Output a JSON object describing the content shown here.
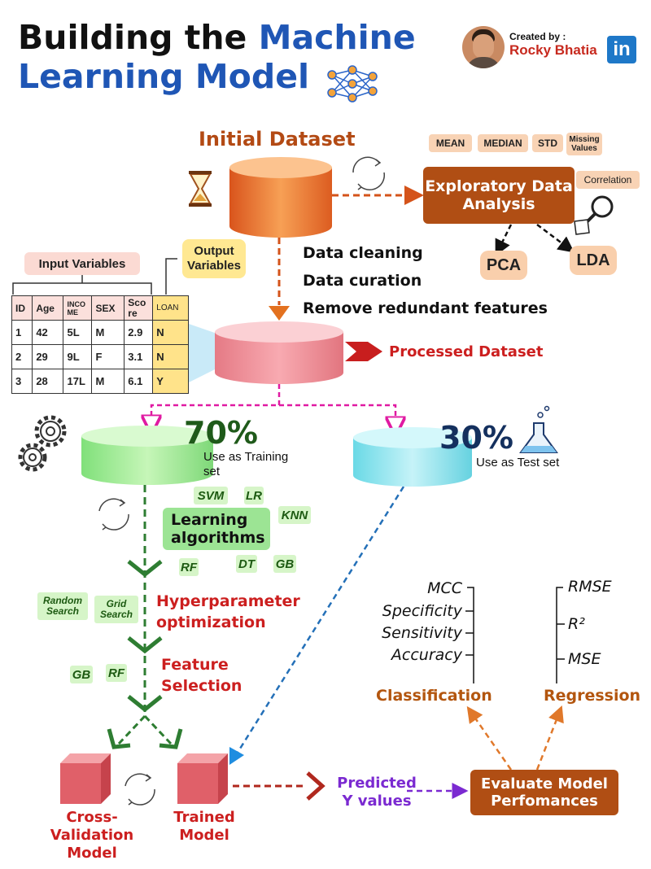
{
  "header": {
    "title_part1": "Building the ",
    "title_part2": "Machine",
    "title_part3": "Learning Model",
    "created_by": "Created by :",
    "author": "Rocky Bhatia",
    "linkedin": "in"
  },
  "initial_dataset": "Initial Dataset",
  "eda": {
    "label": "Exploratory Data Analysis",
    "tags": [
      "MEAN",
      "MEDIAN",
      "STD",
      "Missing Values",
      "Correlation"
    ],
    "pca": "PCA",
    "lda": "LDA"
  },
  "steps": [
    "Data cleaning",
    "Data curation",
    "Remove redundant features"
  ],
  "table": {
    "input_label": "Input Variables",
    "output_label": "Output Variables",
    "headers": [
      "ID",
      "Age",
      "INCO ME",
      "SEX",
      "Sco re",
      "LOAN"
    ],
    "rows": [
      [
        "1",
        "42",
        "5L",
        "M",
        "2.9",
        "N"
      ],
      [
        "2",
        "29",
        "9L",
        "F",
        "3.1",
        "N"
      ],
      [
        "3",
        "28",
        "17L",
        "M",
        "6.1",
        "Y"
      ]
    ]
  },
  "processed_dataset": "Processed Dataset",
  "training": {
    "percent": "70%",
    "label": "Use as Training set"
  },
  "test": {
    "percent": "30%",
    "label": "Use as Test set"
  },
  "learning": {
    "label": "Learning algorithms",
    "algorithms": [
      "SVM",
      "LR",
      "KNN",
      "RF",
      "DT",
      "GB"
    ]
  },
  "hyperparameter": {
    "label": "Hyperparameter optimization",
    "methods": [
      "Random Search",
      "Grid Search"
    ]
  },
  "feature_selection": {
    "label": "Feature Selection",
    "methods": [
      "GB",
      "RF"
    ]
  },
  "cross_validation": "Cross-Validation Model",
  "trained_model": "Trained Model",
  "predicted": "Predicted Y values",
  "evaluate": "Evaluate Model Perfomances",
  "classification": {
    "label": "Classification",
    "metrics": [
      "MCC",
      "Specificity",
      "Sensitivity",
      "Accuracy"
    ]
  },
  "regression": {
    "label": "Regression",
    "metrics": [
      "RMSE",
      "R²",
      "MSE"
    ]
  },
  "colors": {
    "title_blue": "#1f56b5",
    "orange": "#b34a14",
    "green": "#2e7d32",
    "red": "#cc1f1f",
    "purple": "#7b2ad1"
  }
}
